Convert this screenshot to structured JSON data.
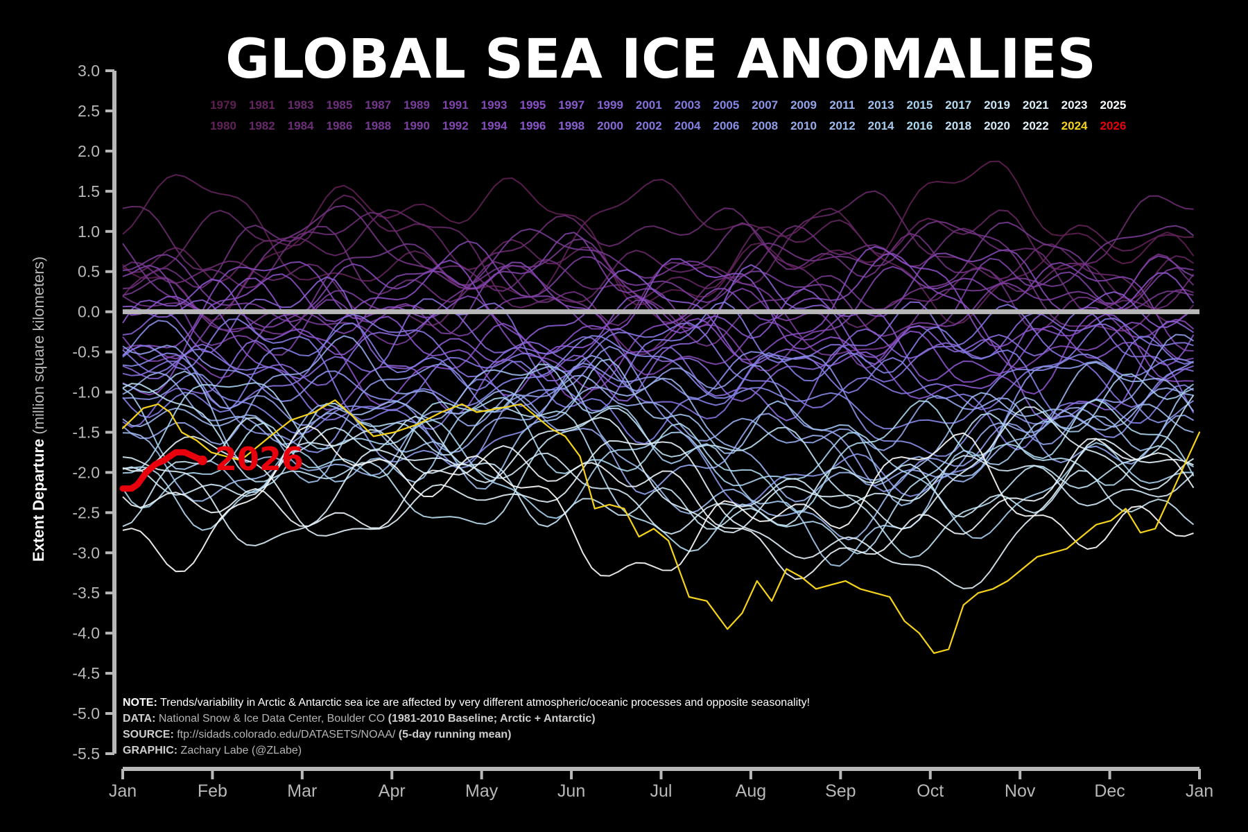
{
  "chart_data": {
    "type": "line",
    "title": "GLOBAL SEA ICE ANOMALIES",
    "ylabel_bold": "Extent Departure",
    "ylabel_rest": " (million square kilometers)",
    "xlabel": "",
    "ylim": [
      -5.5,
      3.0
    ],
    "xlim_days": [
      0,
      365
    ],
    "grid": false,
    "yticks": [
      "3.0",
      "2.5",
      "2.0",
      "1.5",
      "1.0",
      "0.5",
      "0.0",
      "-0.5",
      "-1.0",
      "-1.5",
      "-2.0",
      "-2.5",
      "-3.0",
      "-3.5",
      "-4.0",
      "-4.5",
      "-5.0",
      "-5.5"
    ],
    "xticks": [
      "Jan",
      "Feb",
      "Mar",
      "Apr",
      "May",
      "Jun",
      "Jul",
      "Aug",
      "Sep",
      "Oct",
      "Nov",
      "Dec",
      "Jan"
    ],
    "legend_row1": [
      "1979",
      "1981",
      "1983",
      "1985",
      "1987",
      "1989",
      "1991",
      "1993",
      "1995",
      "1997",
      "1999",
      "2001",
      "2003",
      "2005",
      "2007",
      "2009",
      "2011",
      "2013",
      "2015",
      "2017",
      "2019",
      "2021",
      "2023",
      "2025"
    ],
    "legend_row2": [
      "1980",
      "1982",
      "1984",
      "1986",
      "1988",
      "1990",
      "1992",
      "1994",
      "1996",
      "1998",
      "2000",
      "2002",
      "2004",
      "2006",
      "2008",
      "2010",
      "2012",
      "2014",
      "2016",
      "2018",
      "2020",
      "2022",
      "2024",
      "2026"
    ],
    "legend_placement": "top-center",
    "colors": {
      "baseline": "#b8b8b8",
      "year_2024": "#f5d31b",
      "year_2026": "#e8000d",
      "early_years": "#5e1f52",
      "mid_years": "#8b6fe0",
      "late_years": "#b6def2",
      "recent_years": "#ffffff"
    },
    "baseline_value": 0.0,
    "series": [
      {
        "name": "2024",
        "x": [
          0,
          7,
          12,
          16,
          20,
          25,
          30,
          40,
          50,
          57,
          65,
          72,
          78,
          85,
          92,
          100,
          108,
          115,
          120,
          128,
          135,
          140,
          145,
          150,
          155,
          160,
          165,
          170,
          175,
          180,
          185,
          192,
          198,
          205,
          210,
          215,
          220,
          225,
          230,
          235,
          240,
          245,
          250,
          255,
          260,
          265,
          270,
          275,
          280,
          285,
          290,
          295,
          300,
          305,
          310,
          315,
          320,
          325,
          330,
          335,
          340,
          345,
          350,
          355,
          360,
          365
        ],
        "values": [
          -1.45,
          -1.2,
          -1.15,
          -1.25,
          -1.5,
          -1.6,
          -1.75,
          -1.85,
          -1.55,
          -1.35,
          -1.25,
          -1.1,
          -1.3,
          -1.55,
          -1.5,
          -1.4,
          -1.25,
          -1.15,
          -1.25,
          -1.2,
          -1.15,
          -1.3,
          -1.45,
          -1.55,
          -1.8,
          -2.45,
          -2.4,
          -2.45,
          -2.8,
          -2.7,
          -2.85,
          -3.55,
          -3.6,
          -3.95,
          -3.75,
          -3.35,
          -3.6,
          -3.2,
          -3.3,
          -3.45,
          -3.4,
          -3.35,
          -3.45,
          -3.5,
          -3.55,
          -3.85,
          -4.0,
          -4.25,
          -4.2,
          -3.65,
          -3.5,
          -3.45,
          -3.35,
          -3.2,
          -3.05,
          -3.0,
          -2.95,
          -2.8,
          -2.65,
          -2.6,
          -2.45,
          -2.75,
          -2.7,
          -2.3,
          -1.9,
          -1.5
        ]
      },
      {
        "name": "2026",
        "x": [
          0,
          3,
          5,
          8,
          11,
          14,
          18,
          21,
          24,
          27
        ],
        "values": [
          -2.2,
          -2.2,
          -2.15,
          -2.0,
          -1.9,
          -1.85,
          -1.75,
          -1.75,
          -1.8,
          -1.85
        ]
      }
    ],
    "annotations": [
      "2026"
    ]
  },
  "notes": {
    "note_key": "NOTE:",
    "note_text": " Trends/variability in Arctic & Antarctic sea ice are affected by very different atmospheric/oceanic processes and opposite seasonality!",
    "data_key": "DATA:",
    "data_text": " National Snow & Ice Data Center, Boulder CO ",
    "data_bold": "(1981-2010 Baseline; Arctic + Antarctic)",
    "source_key": "SOURCE:",
    "source_text": " ftp://sidads.colorado.edu/DATASETS/NOAA/ ",
    "source_bold": "(5-day running mean)",
    "graphic_key": "GRAPHIC:",
    "graphic_text": " Zachary Labe (@ZLabe)"
  }
}
